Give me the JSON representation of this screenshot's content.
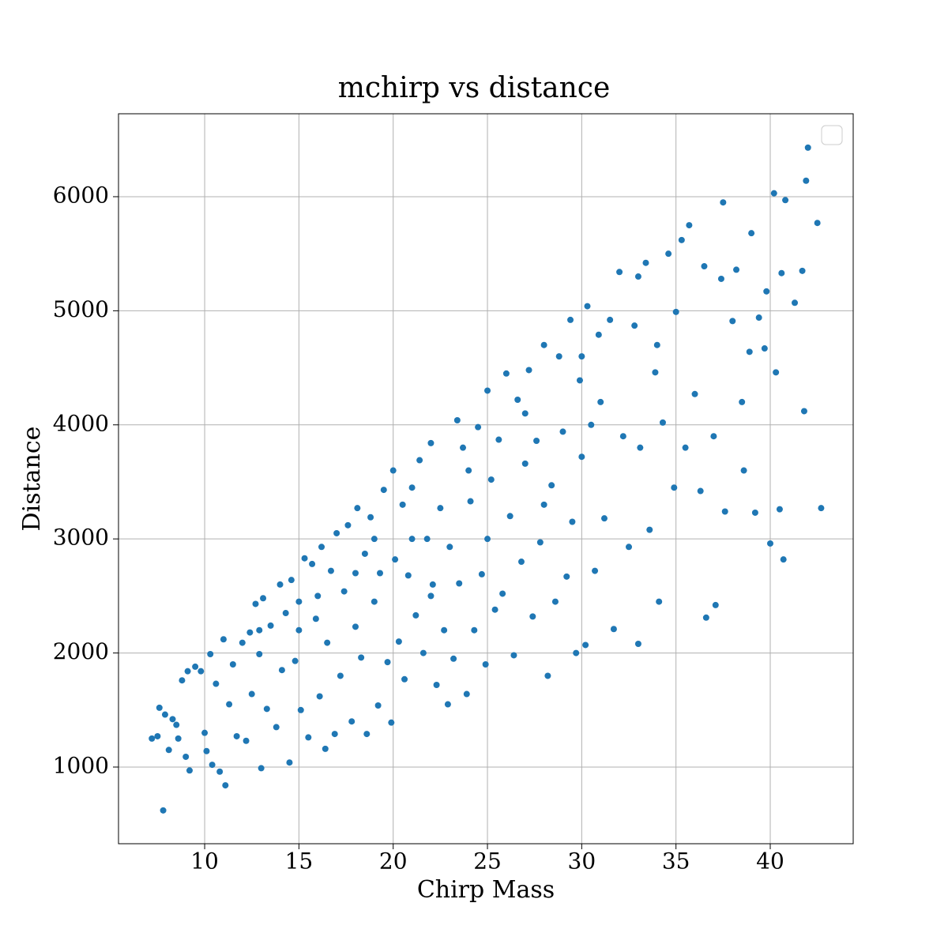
{
  "chart_data": {
    "type": "scatter",
    "title": "mchirp vs distance",
    "x_label": "Chirp Mass",
    "y_label": "Distance",
    "color": "#1f77b4",
    "grid": true,
    "legend": "upper right",
    "xlim": [
      5.43,
      44.4
    ],
    "ylim": [
      328,
      6727
    ],
    "xticks": [
      10,
      15,
      20,
      25,
      30,
      35,
      40
    ],
    "yticks": [
      1000,
      2000,
      3000,
      4000,
      5000,
      6000
    ],
    "x": [
      7.2,
      7.5,
      7.6,
      7.8,
      7.9,
      8.1,
      8.3,
      8.5,
      8.6,
      8.8,
      9.0,
      9.1,
      9.2,
      9.5,
      9.8,
      10.0,
      10.1,
      10.3,
      10.4,
      10.6,
      10.8,
      11.0,
      11.1,
      11.3,
      11.5,
      11.7,
      12.0,
      12.2,
      12.4,
      12.5,
      12.7,
      12.9,
      13.0,
      13.1,
      13.3,
      13.5,
      13.8,
      14.0,
      14.1,
      14.3,
      14.5,
      14.6,
      14.8,
      15.0,
      15.1,
      15.3,
      15.5,
      15.7,
      15.9,
      16.1,
      16.2,
      16.4,
      16.5,
      16.7,
      16.9,
      17.0,
      17.2,
      17.4,
      17.6,
      17.8,
      18.0,
      18.1,
      18.3,
      18.5,
      18.6,
      18.8,
      19.0,
      19.2,
      19.3,
      19.5,
      19.7,
      19.9,
      20.0,
      20.1,
      20.3,
      20.5,
      20.6,
      20.8,
      21.0,
      21.2,
      21.4,
      21.6,
      21.8,
      22.0,
      22.1,
      22.3,
      22.5,
      22.7,
      22.9,
      23.0,
      23.2,
      23.4,
      23.5,
      23.7,
      23.9,
      24.1,
      24.3,
      24.5,
      24.7,
      24.9,
      25.0,
      25.2,
      25.4,
      25.6,
      25.8,
      26.0,
      26.2,
      26.4,
      26.6,
      26.8,
      27.0,
      27.2,
      27.4,
      27.6,
      27.8,
      28.0,
      28.2,
      28.4,
      28.6,
      28.8,
      29.0,
      29.2,
      29.4,
      29.5,
      29.7,
      29.9,
      30.0,
      30.2,
      30.3,
      30.5,
      30.7,
      30.9,
      31.2,
      31.5,
      31.7,
      32.0,
      32.2,
      32.5,
      32.8,
      33.0,
      33.1,
      33.4,
      33.6,
      33.9,
      34.1,
      34.3,
      34.6,
      34.9,
      35.0,
      35.3,
      35.5,
      35.7,
      36.0,
      36.3,
      36.5,
      36.6,
      37.0,
      37.1,
      37.4,
      37.5,
      37.6,
      38.0,
      38.2,
      38.5,
      38.6,
      38.9,
      39.0,
      39.2,
      39.4,
      39.7,
      39.8,
      40.0,
      40.2,
      40.3,
      40.5,
      40.6,
      40.7,
      40.8,
      41.3,
      41.7,
      41.9,
      41.8,
      42.0,
      42.5,
      42.7,
      12.9,
      16.0,
      19.0,
      22.0,
      25.0,
      28.0,
      31.0,
      34.0,
      18.0,
      21.0,
      15.0,
      24.0,
      27.0,
      30.0,
      33.0
    ],
    "values": [
      1250,
      1270,
      1520,
      620,
      1460,
      1150,
      1420,
      1370,
      1250,
      1760,
      1090,
      1840,
      970,
      1880,
      1840,
      1300,
      1140,
      1990,
      1020,
      1730,
      960,
      2120,
      840,
      1550,
      1900,
      1270,
      2090,
      1230,
      2180,
      1640,
      2430,
      1990,
      990,
      2480,
      1510,
      2240,
      1350,
      2600,
      1850,
      2350,
      1040,
      2640,
      1930,
      2450,
      1500,
      2830,
      1260,
      2780,
      2300,
      1620,
      2930,
      1160,
      2090,
      2720,
      1290,
      3050,
      1800,
      2540,
      3120,
      1400,
      2230,
      3270,
      1960,
      2870,
      1290,
      3190,
      2450,
      1540,
      2700,
      3430,
      1920,
      1390,
      3600,
      2820,
      2100,
      3300,
      1770,
      2680,
      3450,
      2330,
      3690,
      2000,
      3000,
      3840,
      2600,
      1720,
      3270,
      2200,
      1550,
      2930,
      1950,
      4040,
      2610,
      3800,
      1640,
      3330,
      2200,
      3980,
      2690,
      1900,
      4300,
      3520,
      2380,
      3870,
      2520,
      4450,
      3200,
      1980,
      4220,
      2800,
      3660,
      4480,
      2320,
      3860,
      2970,
      4700,
      1800,
      3470,
      2450,
      4600,
      3940,
      2670,
      4920,
      3150,
      2000,
      4390,
      3720,
      2070,
      5040,
      4000,
      2720,
      4790,
      3180,
      4920,
      2210,
      5340,
      3900,
      2930,
      4870,
      2080,
      3800,
      5420,
      3080,
      4460,
      2450,
      4020,
      5500,
      3450,
      4990,
      5620,
      3800,
      5750,
      4270,
      3420,
      5390,
      2310,
      3900,
      2420,
      5280,
      5950,
      3240,
      4910,
      5360,
      4200,
      3600,
      4640,
      5680,
      3230,
      4940,
      4670,
      5170,
      2960,
      6030,
      4460,
      3260,
      5330,
      2820,
      5970,
      5070,
      5350,
      6140,
      4120,
      6430,
      5770,
      3270,
      2200,
      2500,
      3000,
      2500,
      3000,
      3300,
      4200,
      4700,
      2700,
      3000,
      2200,
      3600,
      4100,
      4600,
      5300
    ]
  }
}
